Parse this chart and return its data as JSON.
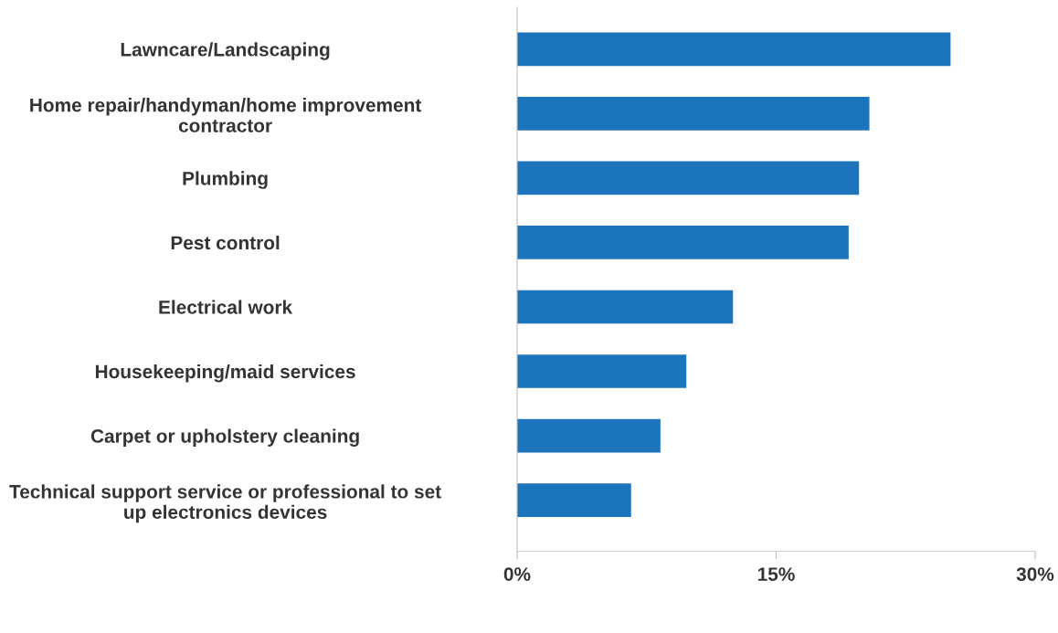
{
  "chart_data": {
    "type": "bar",
    "orientation": "horizontal",
    "categories": [
      "Lawncare/Landscaping",
      "Home repair/handyman/home improvement\ncontractor",
      "Plumbing",
      "Pest control",
      "Electrical work",
      "Housekeeping/maid services",
      "Carpet or upholstery cleaning",
      "Technical support service or professional to set\nup electronics devices"
    ],
    "values": [
      25.1,
      20.4,
      19.8,
      19.2,
      12.5,
      9.8,
      8.3,
      6.6
    ],
    "color": "#1c75bc",
    "xlim": [
      0,
      30
    ],
    "xticks": [
      {
        "value": 0,
        "label": "0%"
      },
      {
        "value": 15,
        "label": "15%"
      },
      {
        "value": 30,
        "label": "30%"
      }
    ],
    "grid": false
  }
}
